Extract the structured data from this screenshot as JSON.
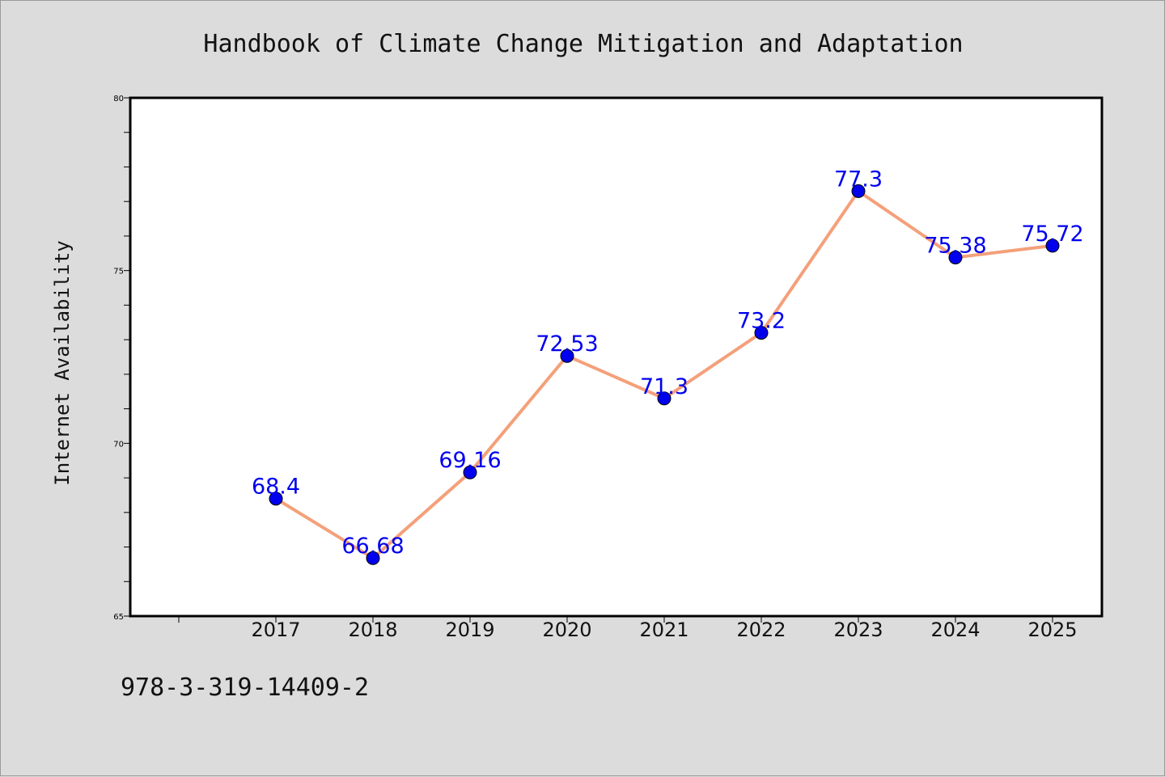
{
  "chart_data": {
    "type": "line",
    "title": "Handbook of Climate Change Mitigation and Adaptation",
    "xlabel": "",
    "ylabel": "Internet Availability",
    "categories": [
      "2017",
      "2018",
      "2019",
      "2020",
      "2021",
      "2022",
      "2023",
      "2024",
      "2025"
    ],
    "values": [
      68.4,
      66.68,
      69.16,
      72.53,
      71.3,
      73.2,
      77.3,
      75.38,
      75.72
    ],
    "data_labels": [
      "68.4",
      "66.68",
      "69.16",
      "72.53",
      "71.3",
      "73.2",
      "77.3",
      "75.38",
      "75.72"
    ],
    "ylim": [
      65,
      80
    ],
    "y_ticks": [
      "65",
      "70",
      "75",
      "80"
    ],
    "grid": false,
    "colors": {
      "line": "#f4a07a",
      "marker": "#0000ee",
      "data_label": "#0000ee",
      "background": "#dcdcdc",
      "plot_background": "#ffffff"
    }
  },
  "caption": "978-3-319-14409-2"
}
